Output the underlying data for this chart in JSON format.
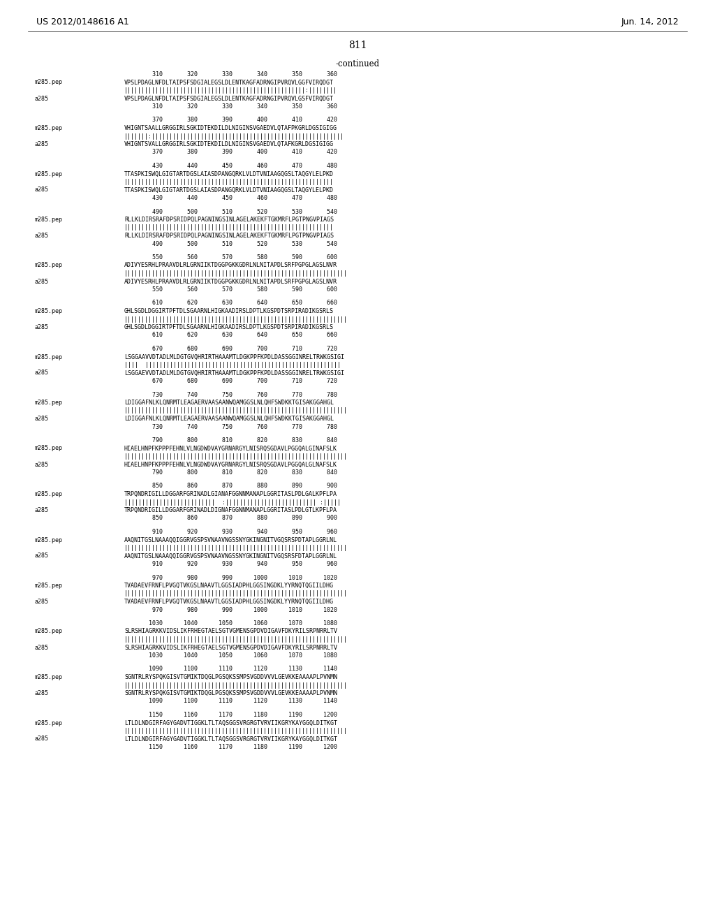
{
  "header_left": "US 2012/0148616 A1",
  "header_right": "Jun. 14, 2012",
  "page_number": "811",
  "continued_label": "-continued",
  "background_color": "#ffffff",
  "text_color": "#000000",
  "mono_font_size": 6.0,
  "header_font_size": 9.0,
  "page_num_font_size": 10.0,
  "continued_font_size": 8.5,
  "blocks": [
    {
      "nums_top": "        310       320       330       340       350       360",
      "label1": "m285.pep",
      "seq1": "VPSLPDAGLNFDLTAIPSFSDGIALEGSLDLENTKAGFADRNGIPVRQVLGGFVIRQDGT",
      "match": "||||||||||||||||||||||||||||||||||||||||||||||||||||:||||||||",
      "label2": "a285",
      "seq2": "VPSLPDAGLNFDLTAIPSFSDGIALEGSLDLENTKAGFADRNGIPVRQVLGSFVIRQDGT",
      "nums_bot": "        310       320       330       340       350       360"
    },
    {
      "nums_top": "        370       380       390       400       410       420",
      "label1": "m285.pep",
      "seq1": "VHIGNTSAALLGRGGIRLSGKIDTEKDILDLNIGINSVGAEDVLQTAFPKGRLDGSIGIGG",
      "match": "|||||||:|||||||||||||||||||||||||||||||||||||||||||||||||||||||",
      "label2": "a285",
      "seq2": "VHIGNTSVALLGRGGIRLSGKIDTEKDILDLNIGINSVGAEDVLQTAFKGRLDGSIGIGG",
      "nums_bot": "        370       380       390       400       410       420"
    },
    {
      "nums_top": "        430       440       450       460       470       480",
      "label1": "m285.pep",
      "seq1": "TTASPKISWQLGIGTARTDGSLAIASDPANGQRKLVLDTVNIAAGQGSLTAQGYLELPKD",
      "match": "||||||||||||||||||||||||||||||||||||||||||||||||||||||||||||",
      "label2": "a285",
      "seq2": "TTASPKISWQLGIGTARTDGSLAIASDPANGQRKLVLDTVNIAAGQGSLTAQGYLELPKD",
      "nums_bot": "        430       440       450       460       470       480"
    },
    {
      "nums_top": "        490       500       510       520       530       540",
      "label1": "m285.pep",
      "seq1": "RLLKLDIRSRAFDPSRIDPQLPAGNINGSINLAGELAKEKFTGKMRFLPGTPNGVPIAGS",
      "match": "||||||||||||||||||||||||||||||||||||||||||||||||||||||||||||",
      "label2": "a285",
      "seq2": "RLLKLDIRSRAFDPSRIDPQLPAGNINGSINLAGELAKEKFTGKMRFLPGTPNGVPIAGS",
      "nums_bot": "        490       500       510       520       530       540"
    },
    {
      "nums_top": "        550       560       570       580       590       600",
      "label1": "m285.pep",
      "seq1": "ADIVYESRHLPRAAVDLRLGRNIIKTDGGPGKKGDRLNLNITAPDLSRFPGPGLAGSLNVR",
      "match": "||||||||||||||||||||||||||||||||||||||||||||||||||||||||||||||||",
      "label2": "a285",
      "seq2": "ADIVYESRHLPRAAVDLRLGRNIIKTDGGPGKKGDRLNLNITAPDLSRFPGPGLAGSLNVR",
      "nums_bot": "        550       560       570       580       590       600"
    },
    {
      "nums_top": "        610       620       630       640       650       660",
      "label1": "m285.pep",
      "seq1": "GHLSGDLDGGIRTPFTDLSGAARNLHIGKAADIRSLDPTLKGSPDTSRPIRADIKGSRLS",
      "match": "||||||||||||||||||||||||||||||||||||||||||||||||||||||||||||||||",
      "label2": "a285",
      "seq2": "GHLSGDLDGGIRTPFTDLSGAARNLHIGKAADIRSLDPTLKGSPDTSRPIRADIKGSRLS",
      "nums_bot": "        610       620       630       640       650       660"
    },
    {
      "nums_top": "        670       680       690       700       710       720",
      "label1": "m285.pep",
      "seq1": "LSGGAAVVDTADLMLDGTGVQHRIRTHAAAMTLDGKPPFKPDLDASSGGINRELTRWKGSIGI",
      "match": "||||  ||||||||||||||||||||||||||||||||||||||||||||||||||||||||",
      "label2": "a285",
      "seq2": "LSGGAEVVDTADLMLDGTGVQHRIRTHAAAMTLDGKPPFKPDLDASSGGINRELTRWKGSIGI",
      "nums_bot": "        670       680       690       700       710       720"
    },
    {
      "nums_top": "        730       740       750       760       770       780",
      "label1": "m285.pep",
      "seq1": "LDIGGAFNLKLQNRMTLEAGAERVAASAANWQAMGGSLNLQHFSWDKKTGISAKGGAHGL",
      "match": "||||||||||||||||||||||||||||||||||||||||||||||||||||||||||||||||",
      "label2": "a285",
      "seq2": "LDIGGAFNLKLQNRMTLEAGAERVAASAANWQAMGGSLNLQHFSWDKKTGISAKGGAHGL",
      "nums_bot": "        730       740       750       760       770       780"
    },
    {
      "nums_top": "        790       800       810       820       830       840",
      "label1": "m285.pep",
      "seq1": "HIAELHNPFKPPPFEHNLVLNGDWDVAYGRNARGYLNISRQSGDAVLPGGQALGINAFSLK",
      "match": "||||||||||||||||||||||||||||||||||||||||||||||||||||||||||||||||",
      "label2": "a285",
      "seq2": "HIAELHNPFKPPPFEHNLVLNGDWDVAYGRNARGYLNISRQSGDAVLPGGQALGLNAFSLK",
      "nums_bot": "        790       800       810       820       830       840"
    },
    {
      "nums_top": "        850       860       870       880       890       900",
      "label1": "m285.pep",
      "seq1": "TRPQNDRIGILLDGGARFGRINADLGIANAFGGNNMANAPLGGRITASLPDLGALKPFLPA",
      "match": "||||||||||||||||||||||||||  :|||||||||||||||||||||||||| :|||||",
      "label2": "a285",
      "seq2": "TRPQNDRIGILLDGGARFGRINADLDIGNAFGGNNMANAPLGGRITASLPDLGTLKPFLPA",
      "nums_bot": "        850       860       870       880       890       900"
    },
    {
      "nums_top": "        910       920       930       940       950       960",
      "label1": "m285.pep",
      "seq1": "AAQNITGSLNAAAQQIGGRVGSPSVNAAVNGSSNYGKINGNITVGQSRSPDTAPLGGRLNL",
      "match": "||||||||||||||||||||||||||||||||||||||||||||||||||||||||||||||||",
      "label2": "a285",
      "seq2": "AAQNITGSLNAAAQQIGGRVGSPSVNAAVNGSSNYGKINGNITVGQSRSFDTAPLGGRLNL",
      "nums_bot": "        910       920       930       940       950       960"
    },
    {
      "nums_top": "        970       980       990      1000      1010      1020",
      "label1": "m285.pep",
      "seq1": "TVADAEVFRNFLPVGQTVKGSLNAAVTLGGSIADPHLGGSINGDKLYYRNQTQGIILDHG",
      "match": "||||||||||||||||||||||||||||||||||||||||||||||||||||||||||||||||",
      "label2": "a285",
      "seq2": "TVADAEVFRNFLPVGQTVKGSLNAAVTLGGSIADPHLGGSINGDKLYYRNQTQGIILDHG",
      "nums_bot": "        970       980       990      1000      1010      1020"
    },
    {
      "nums_top": "       1030      1040      1050      1060      1070      1080",
      "label1": "m285.pep",
      "seq1": "SLRSHIAGRKKVIDSLIKFRHEGTAELSGTVGMENSGPDVDIGAVFDKYRILSRPNRRLTV",
      "match": "||||||||||||||||||||||||||||||||||||||||||||||||||||||||||||||||",
      "label2": "a285",
      "seq2": "SLRSHIAGRKKVIDSLIKFRHEGTAELSGTVGMENSGPDVDIGAVFDKYRILSRPNRRLTV",
      "nums_bot": "       1030      1040      1050      1060      1070      1080"
    },
    {
      "nums_top": "       1090      1100      1110      1120      1130      1140",
      "label1": "m285.pep",
      "seq1": "SGNTRLRYSPQKGISVTGMIKTDQGLPGSQKSSMPSVGDDVVVLGEVKKEAAAAPLPVNMN",
      "match": "||||||||||||||||||||||||||||||||||||||||||||||||||||||||||||||||",
      "label2": "a285",
      "seq2": "SGNTRLRYSPQKGISVTGMIKTDQGLPGSQKSSMPSVGDDVVVLGEVKKEAAAAPLPVNMN",
      "nums_bot": "       1090      1100      1110      1120      1130      1140"
    },
    {
      "nums_top": "       1150      1160      1170      1180      1190      1200",
      "label1": "m285.pep",
      "seq1": "LTLDLNDGIRFAGYGADVTIGGKLTLTAQSGGSVRGRGTVRVIIKGRYKAYGGQLDITKGT",
      "match": "||||||||||||||||||||||||||||||||||||||||||||||||||||||||||||||||",
      "label2": "a285",
      "seq2": "LTLDLNDGIRFAGYGADVTIGGKLTLTAQSGGSVRGRGTVRVIIKGRYKAYGGQLDITKGT",
      "nums_bot": "       1150      1160      1170      1180      1190      1200"
    }
  ]
}
